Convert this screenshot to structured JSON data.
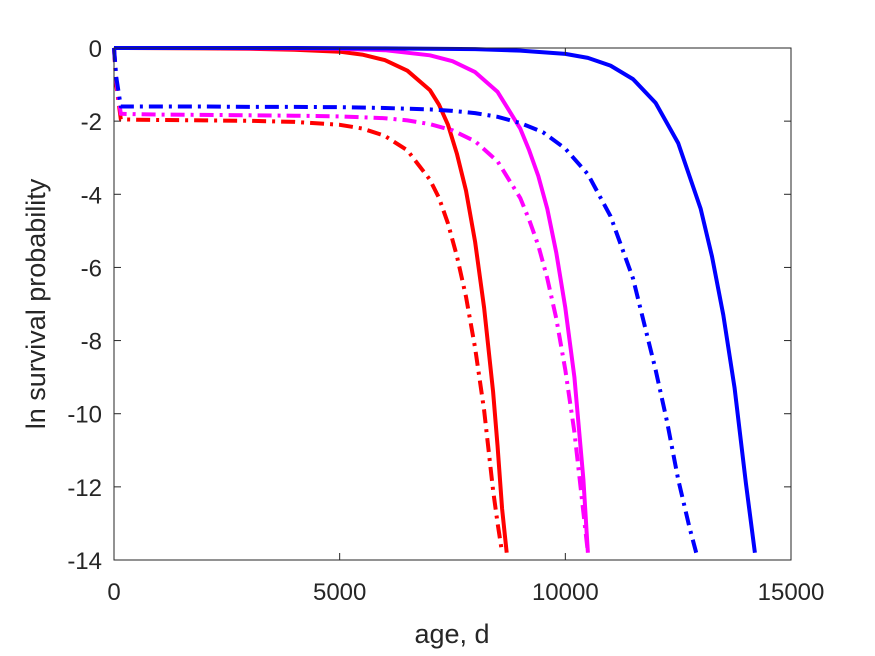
{
  "chart_data": {
    "type": "line",
    "title": "",
    "xlabel": "age, d",
    "ylabel": "ln survival probability",
    "xlim": [
      0,
      15000
    ],
    "ylim": [
      -14,
      0
    ],
    "xticks": [
      0,
      5000,
      10000,
      15000
    ],
    "xtick_labels": [
      "0",
      "5000",
      "10000",
      "15000"
    ],
    "yticks": [
      0,
      -2,
      -4,
      -6,
      -8,
      -10,
      -12,
      -14
    ],
    "ytick_labels": [
      "0",
      "-2",
      "-4",
      "-6",
      "-8",
      "-10",
      "-12",
      "-14"
    ],
    "grid": false,
    "legend": "none",
    "series": [
      {
        "color": "#ff0000",
        "style": "solid",
        "x": [
          0,
          2000,
          3000,
          4000,
          5000,
          5500,
          6000,
          6500,
          7000,
          7200,
          7400,
          7600,
          7800,
          8000,
          8200,
          8400,
          8500,
          8600,
          8700
        ],
        "y": [
          0,
          -0.01,
          -0.02,
          -0.05,
          -0.1,
          -0.18,
          -0.33,
          -0.62,
          -1.15,
          -1.55,
          -2.1,
          -2.9,
          -3.9,
          -5.3,
          -7.1,
          -9.4,
          -10.9,
          -12.6,
          -13.8
        ]
      },
      {
        "color": "#ff0000",
        "style": "dashdot",
        "x": [
          0,
          50,
          150,
          500,
          1000,
          2000,
          3000,
          4000,
          5000,
          5500,
          6000,
          6500,
          7000,
          7200,
          7400,
          7600,
          7800,
          8000,
          8200,
          8400,
          8500,
          8600
        ],
        "y": [
          0,
          -1.0,
          -1.95,
          -1.96,
          -1.97,
          -1.98,
          -1.99,
          -2.02,
          -2.1,
          -2.2,
          -2.4,
          -2.8,
          -3.6,
          -4.1,
          -4.8,
          -5.7,
          -6.8,
          -8.2,
          -9.9,
          -12.1,
          -13.0,
          -13.8
        ]
      },
      {
        "color": "#ff00ff",
        "style": "solid",
        "x": [
          0,
          2000,
          4000,
          5000,
          6000,
          7000,
          7500,
          8000,
          8500,
          9000,
          9200,
          9400,
          9600,
          9800,
          10000,
          10200,
          10400,
          10500
        ],
        "y": [
          0,
          0,
          -0.01,
          -0.02,
          -0.06,
          -0.2,
          -0.36,
          -0.66,
          -1.2,
          -2.2,
          -2.8,
          -3.5,
          -4.4,
          -5.6,
          -7.1,
          -9.0,
          -11.8,
          -13.8
        ]
      },
      {
        "color": "#ff00ff",
        "style": "dashdot",
        "x": [
          0,
          50,
          150,
          500,
          1000,
          2000,
          3000,
          4000,
          5000,
          6000,
          6500,
          7000,
          7500,
          8000,
          8500,
          9000,
          9200,
          9400,
          9600,
          9800,
          10000,
          10200,
          10400,
          10500
        ],
        "y": [
          0,
          -0.9,
          -1.8,
          -1.81,
          -1.82,
          -1.83,
          -1.84,
          -1.85,
          -1.87,
          -1.92,
          -1.98,
          -2.08,
          -2.25,
          -2.55,
          -3.1,
          -4.1,
          -4.7,
          -5.4,
          -6.3,
          -7.4,
          -8.8,
          -10.5,
          -12.7,
          -13.8
        ]
      },
      {
        "color": "#0000ff",
        "style": "solid",
        "x": [
          0,
          4000,
          6000,
          8000,
          9000,
          10000,
          10500,
          11000,
          11500,
          12000,
          12500,
          13000,
          13250,
          13500,
          13750,
          14000,
          14200
        ],
        "y": [
          0,
          0,
          -0.01,
          -0.03,
          -0.07,
          -0.16,
          -0.27,
          -0.48,
          -0.85,
          -1.5,
          -2.6,
          -4.4,
          -5.7,
          -7.3,
          -9.3,
          -11.9,
          -13.8
        ]
      },
      {
        "color": "#0000ff",
        "style": "dashdot",
        "x": [
          0,
          50,
          150,
          500,
          1000,
          2000,
          3000,
          4000,
          5000,
          6000,
          7000,
          7500,
          8000,
          8500,
          9000,
          9500,
          10000,
          10500,
          11000,
          11500,
          12000,
          12250,
          12500,
          12750,
          12900
        ],
        "y": [
          0,
          -0.8,
          -1.6,
          -1.6,
          -1.6,
          -1.6,
          -1.61,
          -1.61,
          -1.62,
          -1.64,
          -1.68,
          -1.72,
          -1.78,
          -1.88,
          -2.05,
          -2.3,
          -2.75,
          -3.45,
          -4.6,
          -6.3,
          -8.8,
          -10.2,
          -11.8,
          -13.1,
          -13.8
        ]
      }
    ]
  }
}
